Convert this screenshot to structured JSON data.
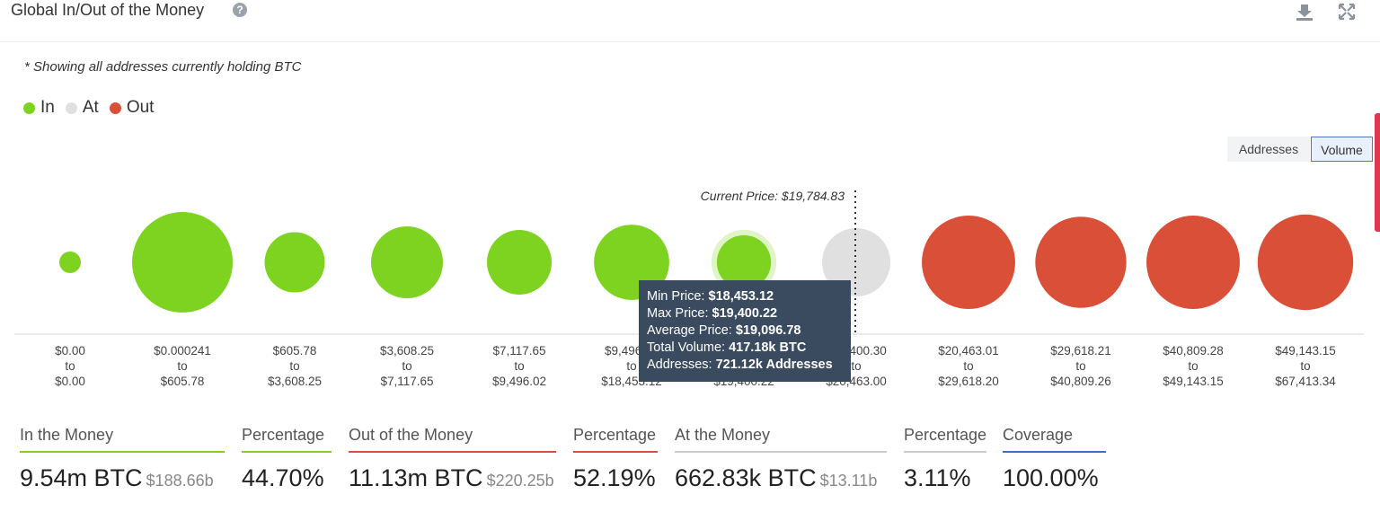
{
  "header": {
    "title": "Global In/Out of the Money",
    "help_glyph": "?"
  },
  "note": "* Showing all addresses currently holding BTC",
  "legend": [
    {
      "label": "In",
      "color": "#7ed321"
    },
    {
      "label": "At",
      "color": "#e0e0e0"
    },
    {
      "label": "Out",
      "color": "#d94f38"
    }
  ],
  "toggle": {
    "addresses_label": "Addresses",
    "volume_label": "Volume",
    "active": "Volume"
  },
  "chart_data": {
    "type": "bubble",
    "current_price_label": "Current Price: $19,784.83",
    "current_price": 19784.83,
    "buckets": [
      {
        "range": [
          "$0.00",
          "to",
          "$0.00"
        ],
        "status": "In",
        "volume_btc": 2500
      },
      {
        "range": [
          "$0.000241",
          "to",
          "$605.78"
        ],
        "status": "In",
        "volume_btc": 1440000
      },
      {
        "range": [
          "$605.78",
          "to",
          "$3,608.25"
        ],
        "status": "In",
        "volume_btc": 515000
      },
      {
        "range": [
          "$3,608.25",
          "to",
          "$7,117.65"
        ],
        "status": "In",
        "volume_btc": 735000
      },
      {
        "range": [
          "$7,117.65",
          "to",
          "$9,496.02"
        ],
        "status": "In",
        "volume_btc": 595000
      },
      {
        "range": [
          "$9,496.02",
          "to",
          "$18,453.12"
        ],
        "status": "In",
        "volume_btc": 805000
      },
      {
        "range": [
          "$18,453.12",
          "to",
          "$19,400.22"
        ],
        "status": "In",
        "volume_btc": 417180
      },
      {
        "range": [
          "$19,400.30",
          "to",
          "$20,463.00"
        ],
        "status": "At",
        "volume_btc": 662830
      },
      {
        "range": [
          "$20,463.01",
          "to",
          "$29,618.20"
        ],
        "status": "Out",
        "volume_btc": 1240000
      },
      {
        "range": [
          "$29,618.21",
          "to",
          "$40,809.26"
        ],
        "status": "Out",
        "volume_btc": 1180000
      },
      {
        "range": [
          "$40,809.28",
          "to",
          "$49,143.15"
        ],
        "status": "Out",
        "volume_btc": 1240000
      },
      {
        "range": [
          "$49,143.15",
          "to",
          "$67,413.34"
        ],
        "status": "Out",
        "volume_btc": 1300000
      }
    ],
    "highlighted_index": 6,
    "tooltip": {
      "rows": [
        {
          "label": "Min Price: ",
          "value": "$18,453.12"
        },
        {
          "label": "Max Price: ",
          "value": "$19,400.22"
        },
        {
          "label": "Average Price: ",
          "value": "$19,096.78"
        },
        {
          "label": "Total Volume: ",
          "value": "417.18k BTC"
        },
        {
          "label": "Addresses: ",
          "value": "721.12k Addresses"
        }
      ]
    }
  },
  "stats": [
    {
      "label": "In the Money",
      "value": "9.54m BTC",
      "sub": "$188.66b",
      "color": "#7ed321"
    },
    {
      "label": "Percentage",
      "value": "44.70%",
      "sub": "",
      "color": "#7ed321"
    },
    {
      "label": "Out of the Money",
      "value": "11.13m BTC",
      "sub": "$220.25b",
      "color": "#d94f38"
    },
    {
      "label": "Percentage",
      "value": "52.19%",
      "sub": "",
      "color": "#d94f38"
    },
    {
      "label": "At the Money",
      "value": "662.83k BTC",
      "sub": "$13.11b",
      "color": "#cccccc"
    },
    {
      "label": "Percentage",
      "value": "3.11%",
      "sub": "",
      "color": "#cccccc"
    },
    {
      "label": "Coverage",
      "value": "100.00%",
      "sub": "",
      "color": "#3b6fc4"
    }
  ]
}
